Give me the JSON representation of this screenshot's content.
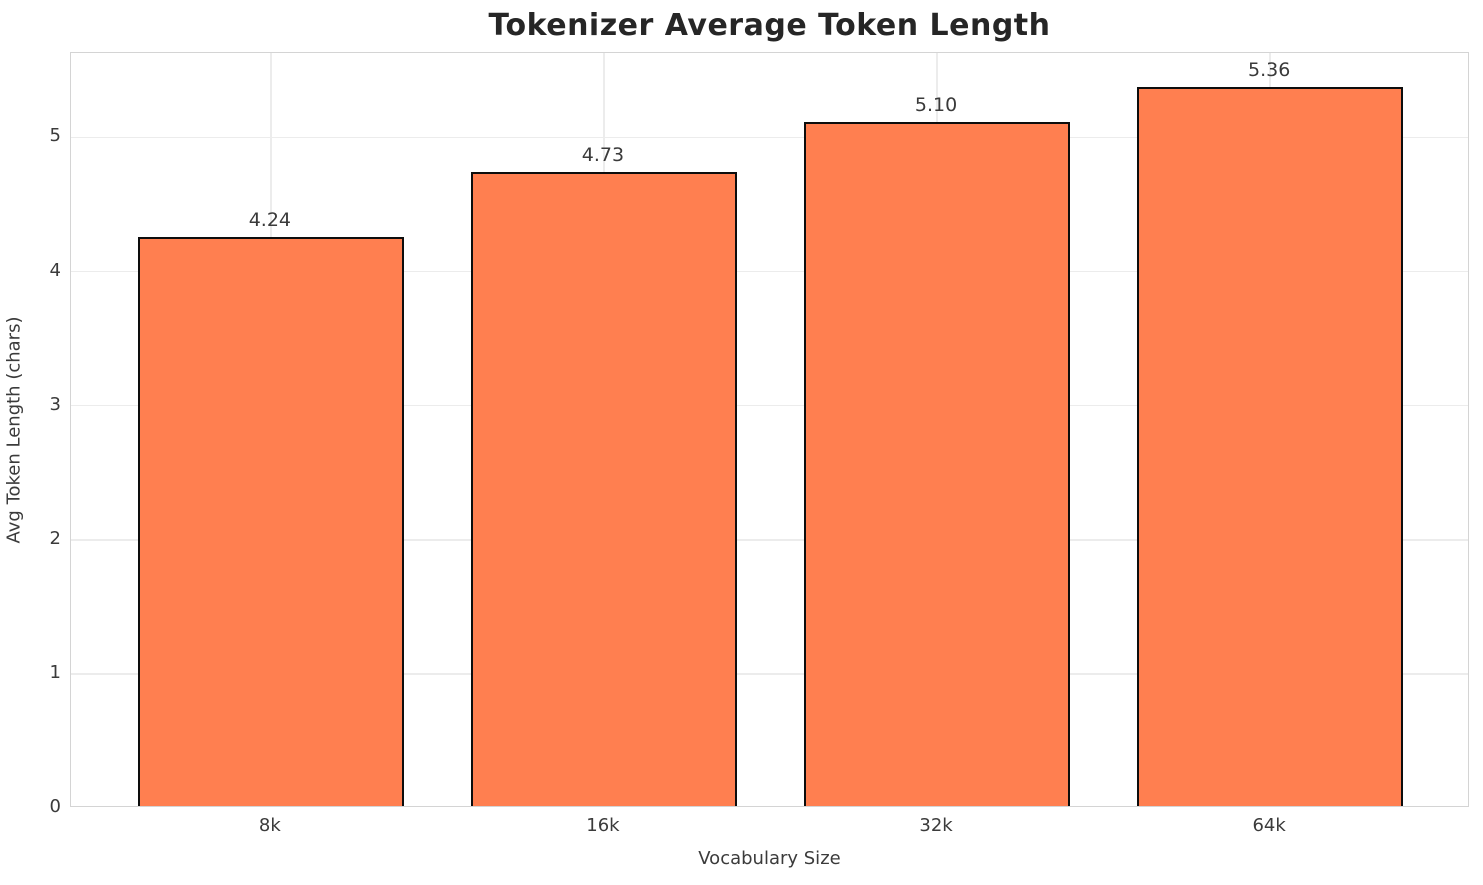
{
  "chart_data": {
    "type": "bar",
    "title": "Tokenizer Average Token Length",
    "xlabel": "Vocabulary Size",
    "ylabel": "Avg Token Length (chars)",
    "categories": [
      "8k",
      "16k",
      "32k",
      "64k"
    ],
    "values": [
      4.24,
      4.73,
      5.1,
      5.36
    ],
    "value_labels": [
      "4.24",
      "4.73",
      "5.10",
      "5.36"
    ],
    "yticks": [
      0,
      1,
      2,
      3,
      4,
      5
    ],
    "ylim": [
      0,
      5.63
    ],
    "xlim": [
      -0.6,
      3.6
    ],
    "bar_width": 0.8,
    "grid": true,
    "legend": "none",
    "colors": {
      "bar_fill": "#FF7F50",
      "bar_edge": "#0d0d0d",
      "grid_line": "#ececec",
      "spine": "#d4d4d4",
      "title_text": "#262626",
      "tick_text": "#3b3b3b",
      "value_label_text": "#3a3a3a",
      "background": "#ffffff"
    }
  }
}
